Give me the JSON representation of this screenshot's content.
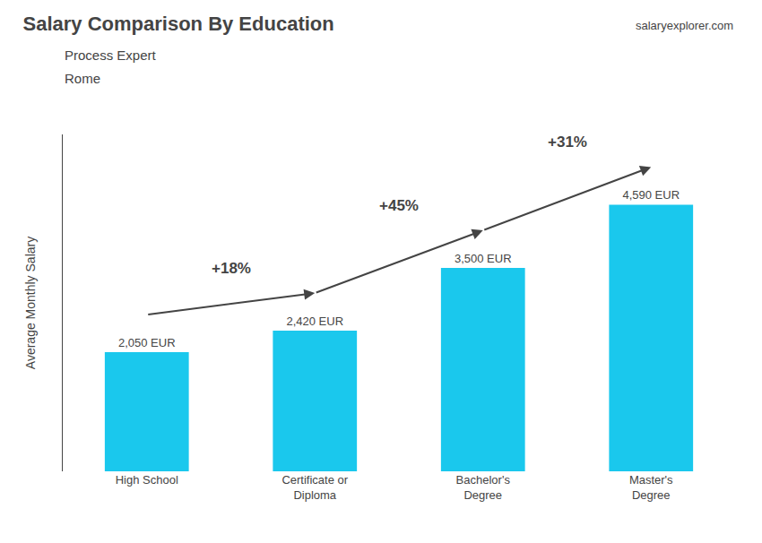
{
  "chart_data": {
    "type": "bar",
    "title": "Salary Comparison By Education",
    "subtitle": [
      "Process Expert",
      "Rome"
    ],
    "source": "salaryexplorer.com",
    "ylabel": "Average Monthly Salary",
    "categories": [
      "High School",
      "Certificate or\nDiploma",
      "Bachelor's\nDegree",
      "Master's\nDegree"
    ],
    "values": [
      2050,
      2420,
      3500,
      4590
    ],
    "value_labels": [
      "2,050 EUR",
      "2,420 EUR",
      "3,500 EUR",
      "4,590 EUR"
    ],
    "data_labels": true,
    "annotations": [
      "+18%",
      "+45%",
      "+31%"
    ],
    "color": "#1ac8ed",
    "ylim": [
      0,
      5800
    ],
    "yticks": [],
    "tick_labels": "x",
    "grid": false
  }
}
